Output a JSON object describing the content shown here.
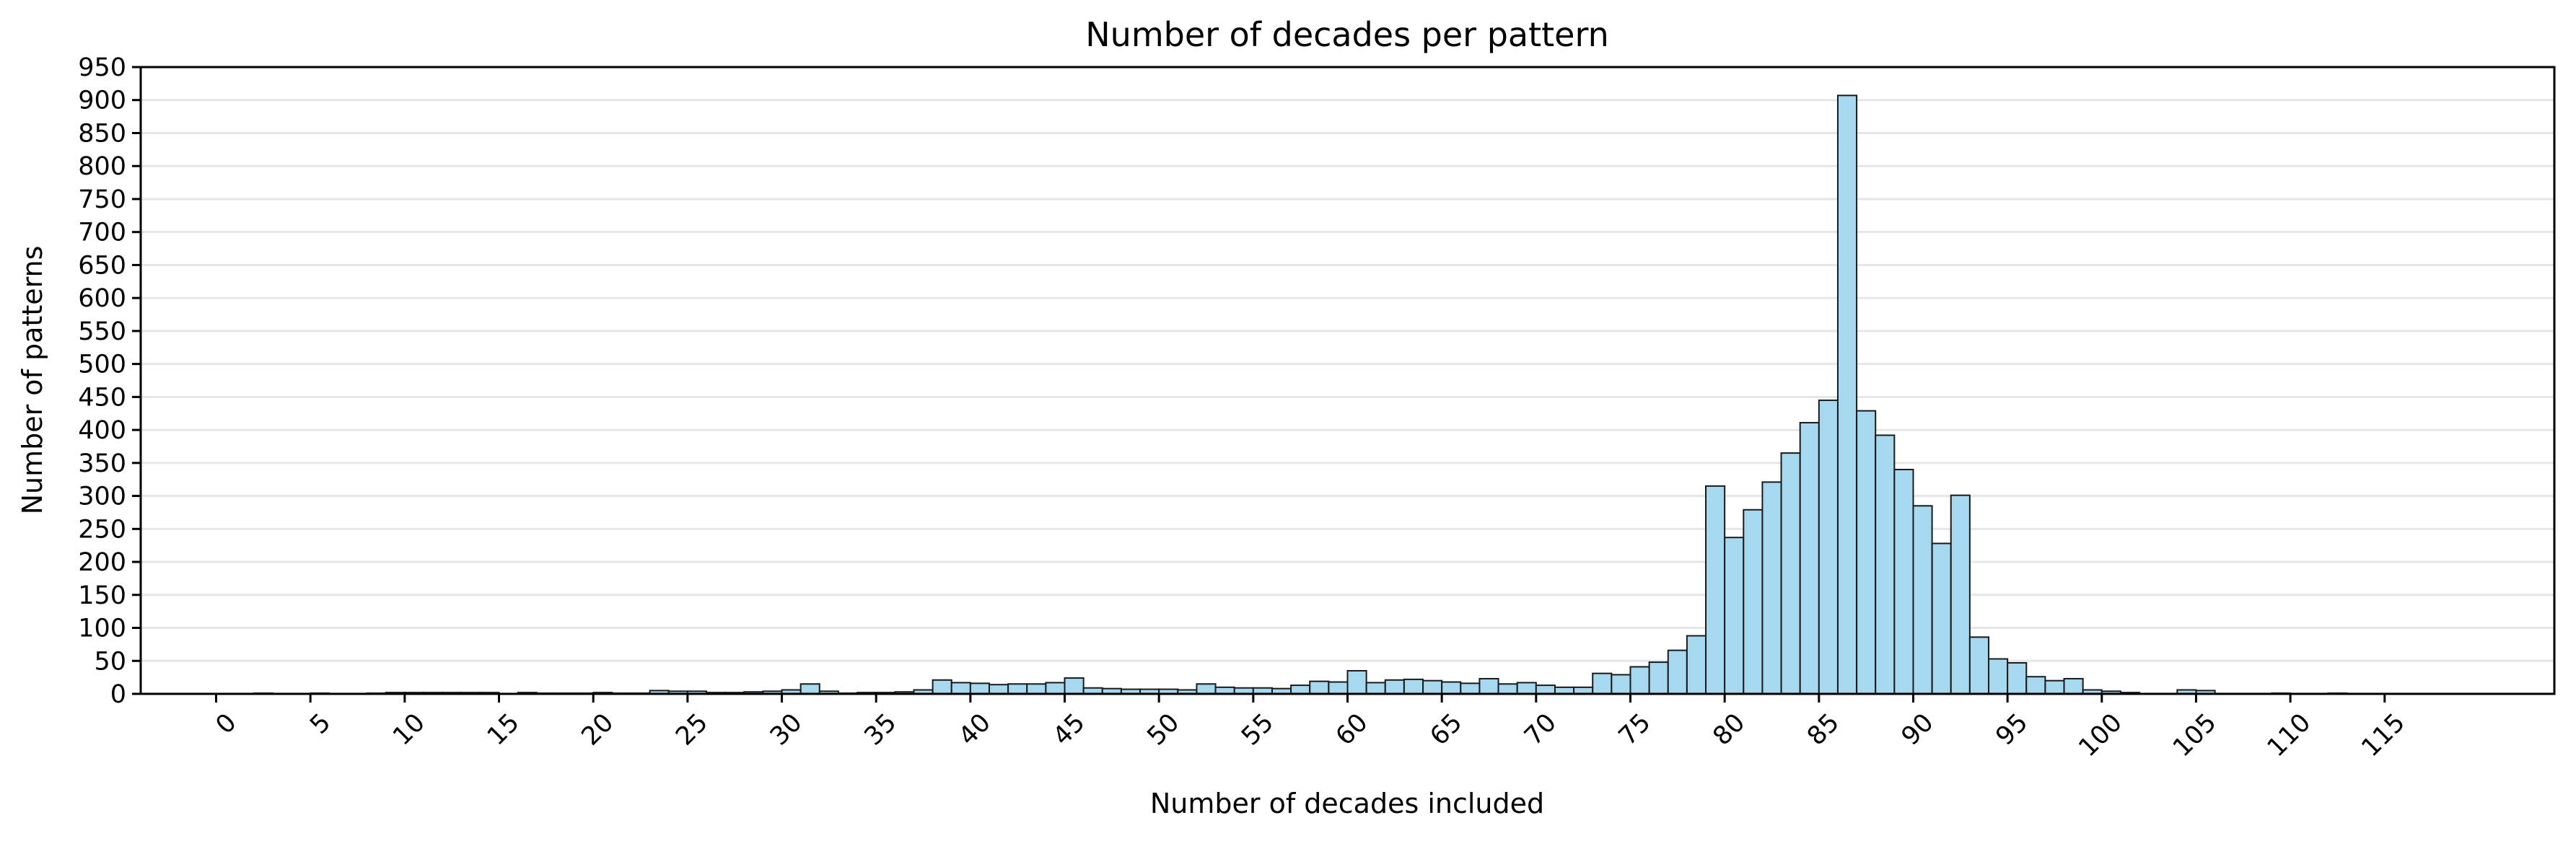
{
  "chart_data": {
    "type": "bar",
    "title": "Number of decades per pattern",
    "xlabel": "Number of decades included",
    "ylabel": "Number of patterns",
    "xlim": [
      -4,
      124
    ],
    "ylim": [
      0,
      950
    ],
    "xticks": [
      0,
      5,
      10,
      15,
      20,
      25,
      30,
      35,
      40,
      45,
      50,
      55,
      60,
      65,
      70,
      75,
      80,
      85,
      90,
      95,
      100,
      105,
      110,
      115
    ],
    "yticks": [
      0,
      50,
      100,
      150,
      200,
      250,
      300,
      350,
      400,
      450,
      500,
      550,
      600,
      650,
      700,
      750,
      800,
      850,
      900,
      950
    ],
    "grid": "horizontal",
    "bar_color": "#a6d8ef",
    "edge_color": "#1a1a1a",
    "bins": [
      {
        "x": 0,
        "y": 0
      },
      {
        "x": 1,
        "y": 0
      },
      {
        "x": 2,
        "y": 1
      },
      {
        "x": 3,
        "y": 0
      },
      {
        "x": 4,
        "y": 0
      },
      {
        "x": 5,
        "y": 1
      },
      {
        "x": 6,
        "y": 0
      },
      {
        "x": 7,
        "y": 0
      },
      {
        "x": 8,
        "y": 1
      },
      {
        "x": 9,
        "y": 2
      },
      {
        "x": 10,
        "y": 2
      },
      {
        "x": 11,
        "y": 2
      },
      {
        "x": 12,
        "y": 2
      },
      {
        "x": 13,
        "y": 2
      },
      {
        "x": 14,
        "y": 2
      },
      {
        "x": 15,
        "y": 0
      },
      {
        "x": 16,
        "y": 2
      },
      {
        "x": 17,
        "y": 1
      },
      {
        "x": 18,
        "y": 1
      },
      {
        "x": 19,
        "y": 1
      },
      {
        "x": 20,
        "y": 2
      },
      {
        "x": 21,
        "y": 1
      },
      {
        "x": 22,
        "y": 1
      },
      {
        "x": 23,
        "y": 5
      },
      {
        "x": 24,
        "y": 4
      },
      {
        "x": 25,
        "y": 4
      },
      {
        "x": 26,
        "y": 2
      },
      {
        "x": 27,
        "y": 2
      },
      {
        "x": 28,
        "y": 3
      },
      {
        "x": 29,
        "y": 4
      },
      {
        "x": 30,
        "y": 6
      },
      {
        "x": 31,
        "y": 15
      },
      {
        "x": 32,
        "y": 4
      },
      {
        "x": 33,
        "y": 1
      },
      {
        "x": 34,
        "y": 2
      },
      {
        "x": 35,
        "y": 2
      },
      {
        "x": 36,
        "y": 3
      },
      {
        "x": 37,
        "y": 6
      },
      {
        "x": 38,
        "y": 21
      },
      {
        "x": 39,
        "y": 17
      },
      {
        "x": 40,
        "y": 16
      },
      {
        "x": 41,
        "y": 14
      },
      {
        "x": 42,
        "y": 15
      },
      {
        "x": 43,
        "y": 15
      },
      {
        "x": 44,
        "y": 17
      },
      {
        "x": 45,
        "y": 24
      },
      {
        "x": 46,
        "y": 9
      },
      {
        "x": 47,
        "y": 8
      },
      {
        "x": 48,
        "y": 7
      },
      {
        "x": 49,
        "y": 7
      },
      {
        "x": 50,
        "y": 7
      },
      {
        "x": 51,
        "y": 6
      },
      {
        "x": 52,
        "y": 15
      },
      {
        "x": 53,
        "y": 10
      },
      {
        "x": 54,
        "y": 9
      },
      {
        "x": 55,
        "y": 9
      },
      {
        "x": 56,
        "y": 8
      },
      {
        "x": 57,
        "y": 13
      },
      {
        "x": 58,
        "y": 19
      },
      {
        "x": 59,
        "y": 18
      },
      {
        "x": 60,
        "y": 35
      },
      {
        "x": 61,
        "y": 17
      },
      {
        "x": 62,
        "y": 21
      },
      {
        "x": 63,
        "y": 22
      },
      {
        "x": 64,
        "y": 20
      },
      {
        "x": 65,
        "y": 18
      },
      {
        "x": 66,
        "y": 16
      },
      {
        "x": 67,
        "y": 23
      },
      {
        "x": 68,
        "y": 15
      },
      {
        "x": 69,
        "y": 17
      },
      {
        "x": 70,
        "y": 13
      },
      {
        "x": 71,
        "y": 10
      },
      {
        "x": 72,
        "y": 10
      },
      {
        "x": 73,
        "y": 31
      },
      {
        "x": 74,
        "y": 29
      },
      {
        "x": 75,
        "y": 41
      },
      {
        "x": 76,
        "y": 48
      },
      {
        "x": 77,
        "y": 66
      },
      {
        "x": 78,
        "y": 88
      },
      {
        "x": 79,
        "y": 315
      },
      {
        "x": 80,
        "y": 237
      },
      {
        "x": 81,
        "y": 279
      },
      {
        "x": 82,
        "y": 321
      },
      {
        "x": 83,
        "y": 365
      },
      {
        "x": 84,
        "y": 411
      },
      {
        "x": 85,
        "y": 445
      },
      {
        "x": 86,
        "y": 907
      },
      {
        "x": 87,
        "y": 429
      },
      {
        "x": 88,
        "y": 392
      },
      {
        "x": 89,
        "y": 340
      },
      {
        "x": 90,
        "y": 285
      },
      {
        "x": 91,
        "y": 228
      },
      {
        "x": 92,
        "y": 301
      },
      {
        "x": 93,
        "y": 86
      },
      {
        "x": 94,
        "y": 53
      },
      {
        "x": 95,
        "y": 47
      },
      {
        "x": 96,
        "y": 26
      },
      {
        "x": 97,
        "y": 20
      },
      {
        "x": 98,
        "y": 23
      },
      {
        "x": 99,
        "y": 6
      },
      {
        "x": 100,
        "y": 4
      },
      {
        "x": 101,
        "y": 2
      },
      {
        "x": 102,
        "y": 0
      },
      {
        "x": 103,
        "y": 0
      },
      {
        "x": 104,
        "y": 6
      },
      {
        "x": 105,
        "y": 5
      },
      {
        "x": 106,
        "y": 0
      },
      {
        "x": 107,
        "y": 0
      },
      {
        "x": 108,
        "y": 0
      },
      {
        "x": 109,
        "y": 1
      },
      {
        "x": 110,
        "y": 0
      },
      {
        "x": 111,
        "y": 0
      },
      {
        "x": 112,
        "y": 1
      },
      {
        "x": 113,
        "y": 0
      },
      {
        "x": 114,
        "y": 0
      }
    ]
  }
}
